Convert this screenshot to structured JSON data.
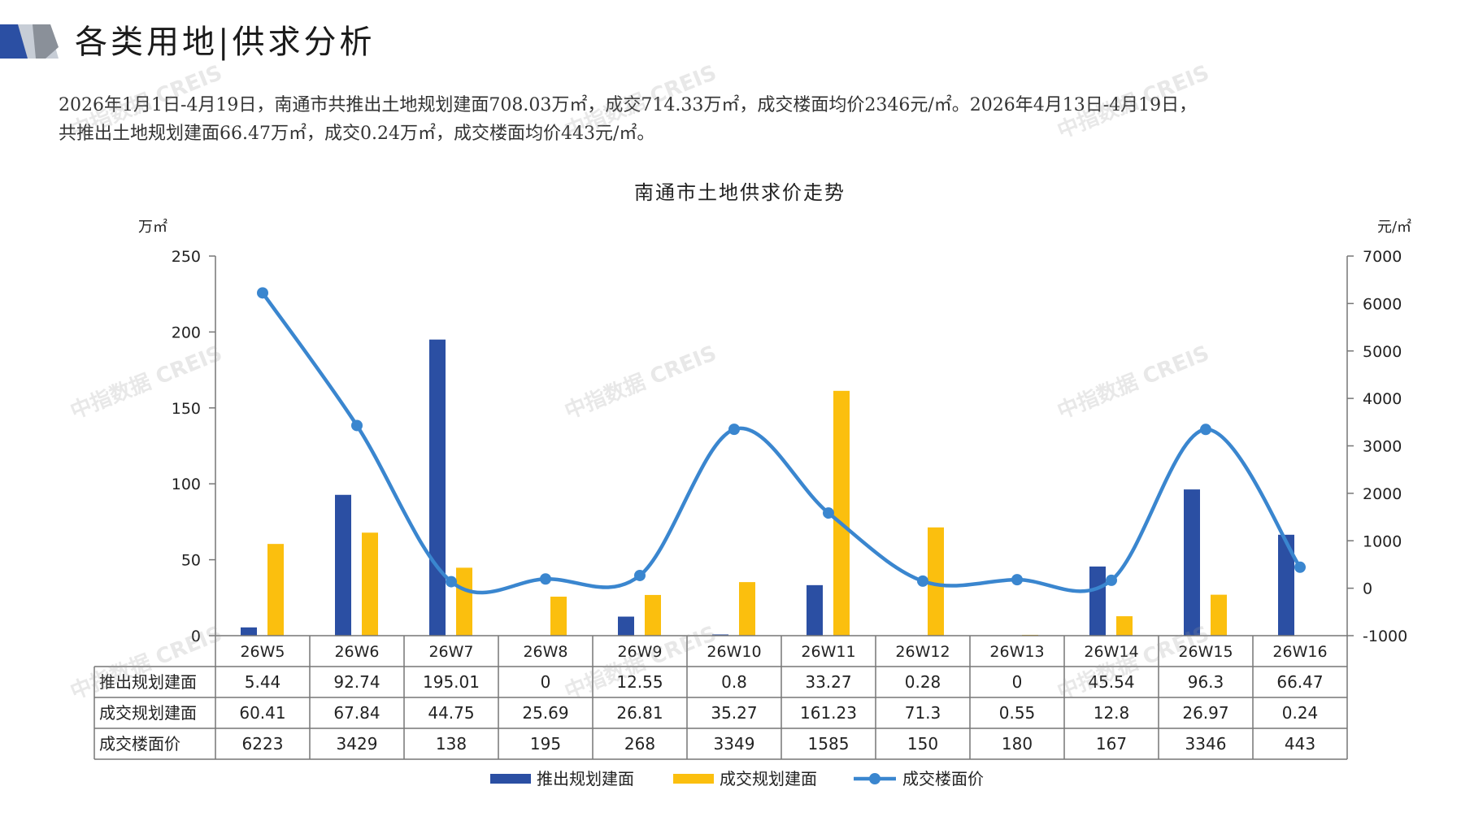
{
  "header": {
    "title": "各类用地|供求分析"
  },
  "summary": {
    "line1": "2026年1月1日-4月19日，南通市共推出土地规划建面708.03万㎡，成交714.33万㎡，成交楼面均价2346元/㎡。2026年4月13日-4月19日，",
    "line2": "共推出土地规划建面66.47万㎡，成交0.24万㎡，成交楼面均价443元/㎡。"
  },
  "watermark": "中指数据 CREIS",
  "chart_data": {
    "type": "bar",
    "title": "南通市土地供求价走势",
    "left_unit": "万㎡",
    "right_unit": "元/㎡",
    "categories": [
      "26W5",
      "26W6",
      "26W7",
      "26W8",
      "26W9",
      "26W10",
      "26W11",
      "26W12",
      "26W13",
      "26W14",
      "26W15",
      "26W16"
    ],
    "y_left_ticks": [
      "0",
      "50",
      "100",
      "150",
      "200",
      "250"
    ],
    "y_right_ticks": [
      "-1000",
      "0",
      "1000",
      "2000",
      "3000",
      "4000",
      "5000",
      "6000",
      "7000"
    ],
    "ylim_left": [
      0,
      250
    ],
    "ylim_right": [
      -1000,
      7000
    ],
    "grid": false,
    "legend_position": "bottom",
    "series": [
      {
        "name": "推出规划建面",
        "type": "bar",
        "axis": "left",
        "color": "#2b4fa3",
        "values": [
          5.44,
          92.74,
          195.01,
          0,
          12.55,
          0.8,
          33.27,
          0.28,
          0,
          45.54,
          96.3,
          66.47
        ],
        "labels": [
          "5.44",
          "92.74",
          "195.01",
          "0",
          "12.55",
          "0.8",
          "33.27",
          "0.28",
          "0",
          "45.54",
          "96.3",
          "66.47"
        ]
      },
      {
        "name": "成交规划建面",
        "type": "bar",
        "axis": "left",
        "color": "#fbbf0e",
        "values": [
          60.41,
          67.84,
          44.75,
          25.69,
          26.81,
          35.27,
          161.23,
          71.3,
          0.55,
          12.8,
          26.97,
          0.24
        ],
        "labels": [
          "60.41",
          "67.84",
          "44.75",
          "25.69",
          "26.81",
          "35.27",
          "161.23",
          "71.3",
          "0.55",
          "12.8",
          "26.97",
          "0.24"
        ]
      },
      {
        "name": "成交楼面价",
        "type": "line",
        "axis": "right",
        "color": "#3a86cf",
        "values": [
          6223,
          3429,
          138,
          195,
          268,
          3349,
          1585,
          150,
          180,
          167,
          3346,
          443
        ],
        "labels": [
          "6223",
          "3429",
          "138",
          "195",
          "268",
          "3349",
          "1585",
          "150",
          "180",
          "167",
          "3346",
          "443"
        ]
      }
    ]
  }
}
